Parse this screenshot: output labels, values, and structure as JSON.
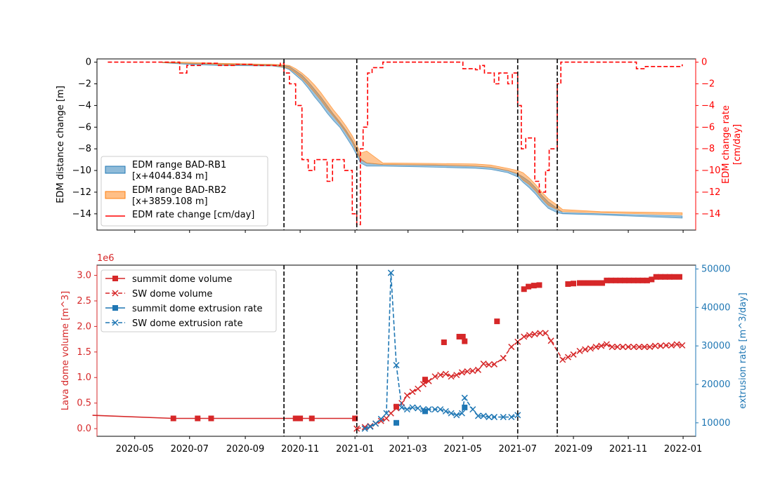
{
  "colors": {
    "red": "#d62728",
    "pure_red": "#ff0000",
    "blue": "#1f77b4",
    "orange": "#ff7f0e",
    "black": "#000000"
  },
  "chart_data": [
    {
      "type": "line",
      "panel": "top",
      "ylabel_left": "EDM distance change [m]",
      "ylabel_right": "EDM change rate\n[cm/day]",
      "xlim": [
        "2020-03-20",
        "2022-01-15"
      ],
      "ylim_left": [
        -15.5,
        0.3
      ],
      "ylim_right": [
        -15.5,
        0.3
      ],
      "x_ticks": [
        "2020-05",
        "2020-07",
        "2020-09",
        "2020-11",
        "2021-01",
        "2021-03",
        "2021-05",
        "2021-07",
        "2021-09",
        "2021-11",
        "2022-01"
      ],
      "x_tick_labels_shown": false,
      "y_ticks_left": [
        0,
        -2,
        -4,
        -6,
        -8,
        -10,
        -12,
        -14
      ],
      "y_ticks_right": [
        0,
        -2,
        -4,
        -6,
        -8,
        -10,
        -12,
        -14
      ],
      "vlines": [
        "2020-10-14",
        "2021-01-03",
        "2021-07-01",
        "2021-08-14"
      ],
      "legend": {
        "position": "lower-left",
        "entries": [
          "EDM range BAD-RB1\n[x+4044.834 m]",
          "EDM range BAD-RB2\n[x+3859.108 m]",
          "EDM rate change [cm/day]"
        ]
      },
      "series": [
        {
          "name": "EDM range BAD-RB1",
          "style": "band",
          "color": "#1f77b4",
          "points": [
            [
              "2020-06-01",
              0,
              -0.05
            ],
            [
              "2020-06-28",
              -0.1,
              -0.2
            ],
            [
              "2020-08-01",
              -0.15,
              -0.3
            ],
            [
              "2020-10-01",
              -0.25,
              -0.35
            ],
            [
              "2020-10-14",
              -0.3,
              -0.5
            ],
            [
              "2020-10-20",
              -0.4,
              -0.7
            ],
            [
              "2020-10-27",
              -0.8,
              -1.2
            ],
            [
              "2020-11-03",
              -1.2,
              -1.7
            ],
            [
              "2020-11-10",
              -1.8,
              -2.4
            ],
            [
              "2020-11-17",
              -2.5,
              -3.2
            ],
            [
              "2020-11-24",
              -3.2,
              -3.9
            ],
            [
              "2020-12-01",
              -4.0,
              -4.7
            ],
            [
              "2020-12-08",
              -4.8,
              -5.4
            ],
            [
              "2020-12-15",
              -5.5,
              -6.0
            ],
            [
              "2020-12-22",
              -6.3,
              -6.9
            ],
            [
              "2020-12-29",
              -7.2,
              -7.8
            ],
            [
              "2021-01-03",
              -8.0,
              -8.6
            ],
            [
              "2021-01-07",
              -8.9,
              -9.3
            ],
            [
              "2021-01-14",
              -9.3,
              -9.6
            ],
            [
              "2021-02-01",
              -9.45,
              -9.6
            ],
            [
              "2021-04-01",
              -9.5,
              -9.7
            ],
            [
              "2021-05-15",
              -9.6,
              -9.8
            ],
            [
              "2021-06-01",
              -9.7,
              -9.9
            ],
            [
              "2021-06-20",
              -10.0,
              -10.2
            ],
            [
              "2021-07-01",
              -10.3,
              -10.6
            ],
            [
              "2021-07-07",
              -10.6,
              -11.1
            ],
            [
              "2021-07-14",
              -11.0,
              -11.6
            ],
            [
              "2021-07-21",
              -11.6,
              -12.2
            ],
            [
              "2021-07-28",
              -12.3,
              -12.9
            ],
            [
              "2021-08-04",
              -12.9,
              -13.5
            ],
            [
              "2021-08-14",
              -13.5,
              -13.9
            ],
            [
              "2021-08-20",
              -13.9,
              -14.0
            ],
            [
              "2021-10-01",
              -14.0,
              -14.1
            ],
            [
              "2021-12-31",
              -14.2,
              -14.4
            ]
          ]
        },
        {
          "name": "EDM range BAD-RB2",
          "style": "band",
          "color": "#ff7f0e",
          "points": [
            [
              "2020-06-01",
              0,
              -0.05
            ],
            [
              "2020-06-28",
              0,
              -0.1
            ],
            [
              "2020-08-01",
              -0.1,
              -0.2
            ],
            [
              "2020-10-01",
              -0.2,
              -0.3
            ],
            [
              "2020-10-14",
              -0.25,
              -0.45
            ],
            [
              "2020-10-20",
              -0.3,
              -0.6
            ],
            [
              "2020-10-27",
              -0.6,
              -1.0
            ],
            [
              "2020-11-03",
              -1.0,
              -1.5
            ],
            [
              "2020-11-10",
              -1.5,
              -2.1
            ],
            [
              "2020-11-17",
              -2.1,
              -2.8
            ],
            [
              "2020-11-24",
              -2.8,
              -3.5
            ],
            [
              "2020-12-01",
              -3.6,
              -4.3
            ],
            [
              "2020-12-08",
              -4.4,
              -5.0
            ],
            [
              "2020-12-15",
              -5.1,
              -5.7
            ],
            [
              "2020-12-22",
              -5.9,
              -6.5
            ],
            [
              "2020-12-29",
              -6.8,
              -7.4
            ],
            [
              "2021-01-03",
              -7.6,
              -8.3
            ],
            [
              "2021-01-07",
              -8.4,
              -9.0
            ],
            [
              "2021-01-14",
              -8.2,
              -9.3
            ],
            [
              "2021-02-01",
              -9.3,
              -9.45
            ],
            [
              "2021-04-01",
              -9.35,
              -9.5
            ],
            [
              "2021-05-15",
              -9.4,
              -9.6
            ],
            [
              "2021-06-01",
              -9.5,
              -9.7
            ],
            [
              "2021-06-20",
              -9.8,
              -10.0
            ],
            [
              "2021-07-01",
              -10.0,
              -10.3
            ],
            [
              "2021-07-07",
              -10.2,
              -10.9
            ],
            [
              "2021-07-14",
              -10.7,
              -11.3
            ],
            [
              "2021-07-21",
              -11.3,
              -11.9
            ],
            [
              "2021-07-28",
              -12.0,
              -12.6
            ],
            [
              "2021-08-04",
              -12.6,
              -13.2
            ],
            [
              "2021-08-14",
              -13.2,
              -13.6
            ],
            [
              "2021-08-20",
              -13.6,
              -13.8
            ],
            [
              "2021-10-01",
              -13.8,
              -13.9
            ],
            [
              "2021-12-31",
              -13.9,
              -14.1
            ]
          ]
        },
        {
          "name": "EDM rate change [cm/day]",
          "style": "steps",
          "axis": "right",
          "color": "#ff0000",
          "x": [
            "2020-04-01",
            "2020-06-20",
            "2020-06-28",
            "2020-07-15",
            "2020-08-01",
            "2020-08-20",
            "2020-09-10",
            "2020-10-01",
            "2020-10-10",
            "2020-10-14",
            "2020-10-20",
            "2020-10-27",
            "2020-11-03",
            "2020-11-10",
            "2020-11-17",
            "2020-12-01",
            "2020-12-07",
            "2020-12-20",
            "2020-12-29",
            "2021-01-03",
            "2021-01-07",
            "2021-01-10",
            "2021-01-15",
            "2021-01-20",
            "2021-02-01",
            "2021-05-01",
            "2021-05-15",
            "2021-05-20",
            "2021-05-25",
            "2021-06-05",
            "2021-06-10",
            "2021-06-20",
            "2021-06-25",
            "2021-07-01",
            "2021-07-05",
            "2021-07-10",
            "2021-07-20",
            "2021-07-25",
            "2021-08-01",
            "2021-08-05",
            "2021-08-14",
            "2021-08-18",
            "2021-11-01",
            "2021-11-10",
            "2021-11-20",
            "2021-12-31"
          ],
          "y": [
            0,
            -1,
            -0.3,
            -0.1,
            -0.3,
            -0.2,
            -0.3,
            -0.3,
            -0.1,
            -1,
            -2,
            -4,
            -9,
            -10,
            -9,
            -11,
            -9,
            -10,
            -14,
            -15,
            -8,
            -6,
            -1,
            -0.5,
            0,
            -0.6,
            -0.7,
            -0.3,
            -1,
            -2,
            -1,
            -2,
            -1,
            -4,
            -8,
            -7,
            -11,
            -12,
            -10,
            -8,
            -2,
            0,
            0,
            -0.6,
            -0.4,
            -0.2
          ]
        }
      ]
    },
    {
      "type": "line",
      "panel": "bottom",
      "ylabel_left": "Lava dome volume [m^3]",
      "ylabel_right": "extrusion rate [m^3/day]",
      "scale_label_left": "1e6",
      "xlim": [
        "2020-03-20",
        "2022-01-15"
      ],
      "ylim_left": [
        -0.15,
        3.2
      ],
      "ylim_right": [
        6500,
        51000
      ],
      "x_ticks": [
        "2020-05",
        "2020-07",
        "2020-09",
        "2020-11",
        "2021-01",
        "2021-03",
        "2021-05",
        "2021-07",
        "2021-09",
        "2021-11",
        "2022-01"
      ],
      "y_ticks_left": [
        "0.0",
        "0.5",
        "1.0",
        "1.5",
        "2.0",
        "2.5",
        "3.0"
      ],
      "y_ticks_right": [
        "10000",
        "20000",
        "30000",
        "40000",
        "50000"
      ],
      "vlines": [
        "2020-10-14",
        "2021-01-03",
        "2021-07-01",
        "2021-08-14"
      ],
      "legend": {
        "position": "upper-left",
        "entries": [
          "summit dome volume",
          "SW dome volume",
          "summit dome extrusion rate",
          "SW dome extrusion rate"
        ]
      },
      "series": [
        {
          "name": "summit dome volume",
          "axis": "left",
          "color": "#d62728",
          "line": "solid",
          "marker": "square",
          "line_x": [
            "2020-03-15",
            "2020-06-13",
            "2020-07-10",
            "2020-07-25",
            "2020-10-27",
            "2020-11-01",
            "2020-11-14",
            "2021-01-01"
          ],
          "line_y": [
            0.26,
            0.2,
            0.2,
            0.2,
            0.2,
            0.2,
            0.2,
            0.2
          ],
          "points_x": [
            "2020-06-13",
            "2020-07-10",
            "2020-07-25",
            "2020-10-27",
            "2020-11-01",
            "2020-11-14",
            "2021-01-01",
            "2021-02-16",
            "2021-03-20",
            "2021-04-10",
            "2021-04-27",
            "2021-05-01",
            "2021-05-03",
            "2021-06-08",
            "2021-07-08",
            "2021-07-13",
            "2021-07-19",
            "2021-07-25",
            "2021-08-26",
            "2021-09-01",
            "2021-09-08",
            "2021-09-13",
            "2021-09-18",
            "2021-09-23",
            "2021-09-28",
            "2021-10-03",
            "2021-10-08",
            "2021-10-13",
            "2021-10-18",
            "2021-10-23",
            "2021-10-28",
            "2021-11-02",
            "2021-11-07",
            "2021-11-12",
            "2021-11-17",
            "2021-11-22",
            "2021-11-27",
            "2021-12-02",
            "2021-12-07",
            "2021-12-12",
            "2021-12-17",
            "2021-12-22",
            "2021-12-28"
          ],
          "points_y": [
            0.2,
            0.2,
            0.2,
            0.2,
            0.2,
            0.2,
            0.2,
            0.43,
            0.96,
            1.69,
            1.8,
            1.8,
            1.71,
            2.1,
            2.73,
            2.78,
            2.8,
            2.81,
            2.83,
            2.84,
            2.85,
            2.85,
            2.85,
            2.85,
            2.85,
            2.85,
            2.9,
            2.9,
            2.9,
            2.9,
            2.9,
            2.9,
            2.9,
            2.9,
            2.9,
            2.9,
            2.92,
            2.97,
            2.97,
            2.97,
            2.97,
            2.97,
            2.97
          ]
        },
        {
          "name": "SW dome volume",
          "axis": "left",
          "color": "#d62728",
          "line": "dashed",
          "marker": "x",
          "x": [
            "2021-01-03",
            "2021-01-12",
            "2021-01-18",
            "2021-01-24",
            "2021-01-30",
            "2021-02-05",
            "2021-02-10",
            "2021-02-16",
            "2021-02-22",
            "2021-02-28",
            "2021-03-06",
            "2021-03-12",
            "2021-03-18",
            "2021-03-24",
            "2021-03-31",
            "2021-04-06",
            "2021-04-12",
            "2021-04-18",
            "2021-04-24",
            "2021-04-30",
            "2021-05-06",
            "2021-05-12",
            "2021-05-18",
            "2021-05-24",
            "2021-05-30",
            "2021-06-05",
            "2021-06-15",
            "2021-06-24",
            "2021-07-01",
            "2021-07-08",
            "2021-07-14",
            "2021-07-20",
            "2021-07-26",
            "2021-08-01",
            "2021-08-07",
            "2021-08-20",
            "2021-08-26",
            "2021-09-01",
            "2021-09-08",
            "2021-09-14",
            "2021-09-20",
            "2021-09-26",
            "2021-10-02",
            "2021-10-08",
            "2021-10-14",
            "2021-10-20",
            "2021-10-26",
            "2021-11-01",
            "2021-11-07",
            "2021-11-13",
            "2021-11-19",
            "2021-11-25",
            "2021-12-01",
            "2021-12-07",
            "2021-12-13",
            "2021-12-19",
            "2021-12-25",
            "2021-12-31"
          ],
          "y": [
            0.0,
            0.03,
            0.05,
            0.1,
            0.15,
            0.2,
            0.3,
            0.4,
            0.5,
            0.65,
            0.72,
            0.78,
            0.87,
            0.93,
            1.02,
            1.05,
            1.07,
            1.02,
            1.05,
            1.1,
            1.12,
            1.13,
            1.15,
            1.27,
            1.25,
            1.26,
            1.38,
            1.6,
            1.7,
            1.8,
            1.83,
            1.85,
            1.87,
            1.87,
            1.72,
            1.35,
            1.4,
            1.45,
            1.52,
            1.55,
            1.57,
            1.6,
            1.62,
            1.65,
            1.6,
            1.6,
            1.6,
            1.6,
            1.6,
            1.6,
            1.6,
            1.6,
            1.62,
            1.62,
            1.63,
            1.63,
            1.65,
            1.63
          ]
        },
        {
          "name": "summit dome extrusion rate",
          "axis": "right",
          "color": "#1f77b4",
          "line": "solid",
          "marker": "square",
          "x": [
            "2021-02-16",
            "2021-03-20",
            "2021-05-03"
          ],
          "y": [
            10000,
            13000,
            14000
          ]
        },
        {
          "name": "SW dome extrusion rate",
          "axis": "right",
          "color": "#1f77b4",
          "line": "dashed",
          "marker": "x",
          "x": [
            "2021-01-12",
            "2021-01-18",
            "2021-01-24",
            "2021-01-30",
            "2021-02-05",
            "2021-02-10",
            "2021-02-16",
            "2021-02-22",
            "2021-02-28",
            "2021-03-06",
            "2021-03-12",
            "2021-03-18",
            "2021-03-24",
            "2021-03-31",
            "2021-04-06",
            "2021-04-12",
            "2021-04-18",
            "2021-04-24",
            "2021-04-30",
            "2021-05-03",
            "2021-05-12",
            "2021-05-18",
            "2021-05-24",
            "2021-05-30",
            "2021-06-05",
            "2021-06-15",
            "2021-06-24",
            "2021-07-01"
          ],
          "y": [
            8500,
            9000,
            9800,
            11000,
            12500,
            49000,
            25000,
            14000,
            13500,
            14000,
            13800,
            13500,
            13500,
            13500,
            13500,
            13000,
            12500,
            12000,
            12500,
            16500,
            13500,
            11800,
            11800,
            11500,
            11500,
            11500,
            11500,
            12000
          ]
        }
      ]
    }
  ]
}
